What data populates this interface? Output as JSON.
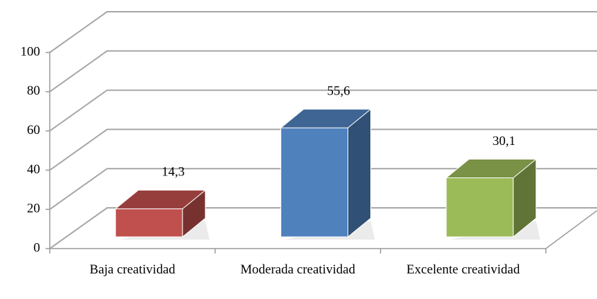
{
  "chart_data": {
    "type": "bar3d",
    "categories": [
      "Baja creatividad",
      "Moderada creatividad",
      "Excelente creatividad"
    ],
    "values": [
      14.3,
      55.6,
      30.1
    ],
    "value_labels": [
      "14,3",
      "55,6",
      "30,1"
    ],
    "colors": [
      "#c0504d",
      "#4f81bd",
      "#9bbb59"
    ],
    "ylim": [
      0,
      100
    ],
    "yticks": [
      0,
      20,
      40,
      60,
      80,
      100
    ],
    "grid": true
  }
}
